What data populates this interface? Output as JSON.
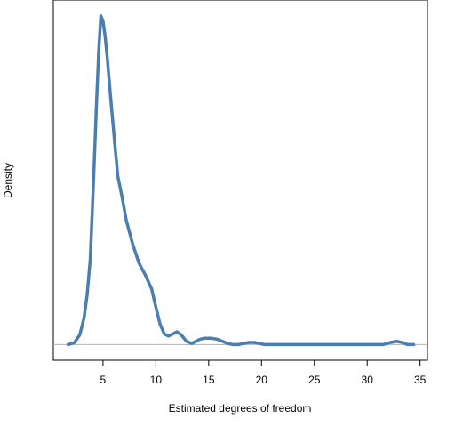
{
  "chart_data": {
    "type": "line",
    "title": "",
    "xlabel": "Estimated degrees of freedom",
    "ylabel": "Density",
    "xlim": [
      0.3,
      35.7
    ],
    "ylim": [
      -0.0095,
      0.2095
    ],
    "x_ticks": [
      5,
      10,
      15,
      20,
      25,
      30,
      35
    ],
    "x_tick_labels": [
      "5",
      "10",
      "15",
      "20",
      "25",
      "30",
      "35"
    ],
    "y_ticks_shown": false,
    "baseline_y": 0,
    "grid": false,
    "legend": "none",
    "series": [
      {
        "color": "#4a7eb0",
        "x": [
          1.7,
          2.3,
          2.8,
          3.2,
          3.5,
          3.8,
          4.0,
          4.2,
          4.4,
          4.6,
          4.8,
          5.0,
          5.2,
          5.4,
          5.6,
          5.8,
          6.1,
          6.4,
          6.8,
          7.2,
          7.8,
          8.4,
          9.0,
          9.6,
          10.0,
          10.4,
          10.8,
          11.2,
          11.6,
          12.0,
          12.4,
          12.9,
          13.4,
          13.8,
          14.2,
          14.6,
          15.2,
          15.8,
          16.3,
          16.8,
          17.3,
          17.8,
          18.3,
          18.8,
          19.3,
          19.8,
          20.3,
          20.8,
          22.0,
          25.0,
          28.0,
          30.0,
          31.5,
          32.2,
          32.8,
          33.3,
          33.8,
          34.4
        ],
        "y": [
          0.0,
          0.0013,
          0.0059,
          0.016,
          0.0303,
          0.0524,
          0.0836,
          0.1154,
          0.1492,
          0.1791,
          0.1999,
          0.1966,
          0.1875,
          0.1745,
          0.1595,
          0.1446,
          0.1232,
          0.1024,
          0.0899,
          0.0756,
          0.0613,
          0.0496,
          0.0424,
          0.0339,
          0.0228,
          0.0124,
          0.0065,
          0.0052,
          0.0065,
          0.0078,
          0.0059,
          0.002,
          0.0007,
          0.002,
          0.0033,
          0.0039,
          0.0039,
          0.0033,
          0.002,
          0.0007,
          0.0,
          0.0,
          0.0007,
          0.0013,
          0.0013,
          0.0007,
          0.0,
          0.0,
          0.0,
          0.0,
          0.0,
          0.0,
          0.0,
          0.0013,
          0.002,
          0.0013,
          0.0,
          0.0
        ]
      }
    ]
  }
}
